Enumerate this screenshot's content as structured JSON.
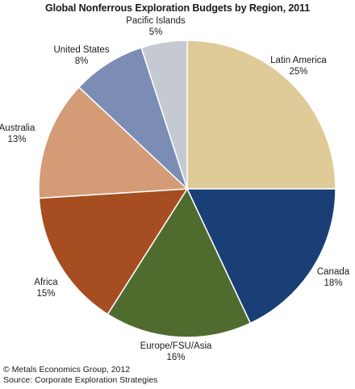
{
  "chart_data": {
    "type": "pie",
    "title": "Global Nonferrous Exploration Budgets by Region, 2011",
    "slices": [
      {
        "label": "Latin America",
        "percent_label": "25%",
        "value": 25,
        "color": "#dfcb98"
      },
      {
        "label": "Canada",
        "percent_label": "18%",
        "value": 18,
        "color": "#193f76"
      },
      {
        "label": "Europe/FSU/Asia",
        "percent_label": "16%",
        "value": 16,
        "color": "#506b2e"
      },
      {
        "label": "Africa",
        "percent_label": "15%",
        "value": 15,
        "color": "#a64e22"
      },
      {
        "label": "Australia",
        "percent_label": "13%",
        "value": 13,
        "color": "#d49b77"
      },
      {
        "label": "United States",
        "percent_label": "8%",
        "value": 8,
        "color": "#7c8db5"
      },
      {
        "label": "Pacific Islands",
        "percent_label": "5%",
        "value": 5,
        "color": "#c5c9d2"
      }
    ]
  },
  "footer": {
    "copyright": "© Metals Economics Group, 2012",
    "source": "Source: Corporate Exploration Strategies"
  }
}
